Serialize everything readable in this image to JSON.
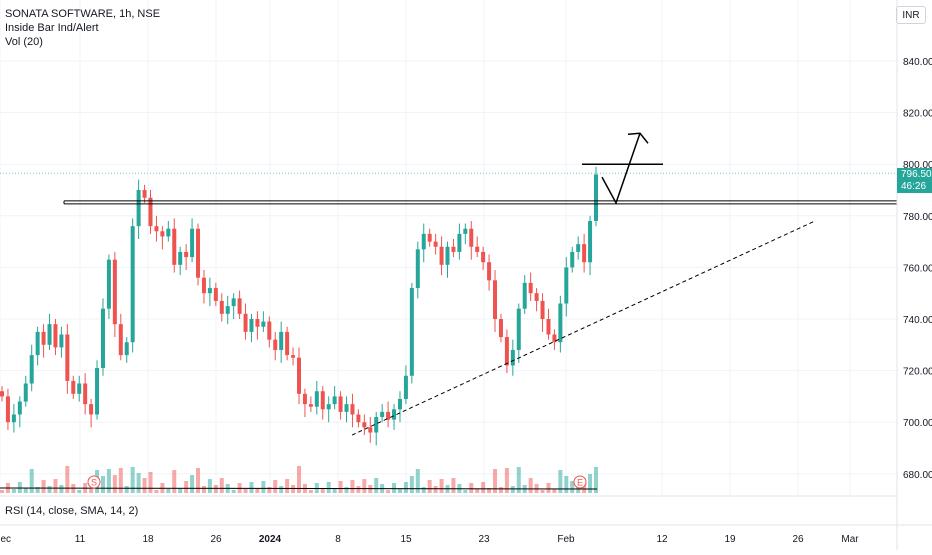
{
  "legend": {
    "symbol": "SONATA SOFTWARE, 1h, NSE",
    "indicator": "Inside Bar Ind/Alert",
    "volume": "Vol (20)"
  },
  "rsi_label": "RSI (14, close, SMA, 14, 2)",
  "currency": "INR",
  "last_price": {
    "value": "796.50",
    "countdown": "46:26"
  },
  "markers": {
    "s_label": "S",
    "e_label": "E"
  },
  "colors": {
    "up": "#26a69a",
    "down": "#ef5350",
    "grid": "#f0f3fa",
    "axis_text": "#131722",
    "drawing": "#000000",
    "last_price_line": "#26a69a"
  },
  "chart_data": {
    "type": "candlestick",
    "title": "SONATA SOFTWARE, 1h, NSE",
    "ylim": [
      670,
      850
    ],
    "y_ticks": [
      "840.00",
      "820.00",
      "800.00",
      "780.00",
      "760.00",
      "740.00",
      "720.00",
      "700.00",
      "680.00"
    ],
    "y_tick_values": [
      840,
      820,
      800,
      780,
      760,
      740,
      720,
      700,
      680
    ],
    "x_ticks": [
      "Dec",
      "11",
      "18",
      "26",
      "2024",
      "8",
      "15",
      "23",
      "Feb",
      "12",
      "19",
      "26",
      "Mar"
    ],
    "last_price": 796.5,
    "horizontal_resistance": 785,
    "trendline": {
      "from": [
        "8",
        695
      ],
      "to": [
        "26",
        778
      ]
    },
    "projection_path": [
      795,
      785,
      812
    ],
    "series": [
      {
        "name": "close",
        "values": [
          710,
          700,
          703,
          708,
          715,
          726,
          735,
          730,
          738,
          729,
          734,
          716,
          711,
          715,
          707,
          703,
          721,
          744,
          763,
          738,
          726,
          731,
          776,
          790,
          787,
          776,
          774,
          772,
          775,
          761,
          766,
          764,
          775,
          756,
          750,
          752,
          747,
          742,
          745,
          748,
          742,
          735,
          740,
          737,
          739,
          732,
          728,
          735,
          726,
          725,
          711,
          707,
          706,
          712,
          705,
          707,
          710,
          704,
          707,
          703,
          700,
          698,
          696,
          702,
          704,
          701,
          705,
          709,
          718,
          752,
          767,
          773,
          770,
          768,
          761,
          768,
          766,
          773,
          775,
          768,
          766,
          762,
          755,
          740,
          733,
          722,
          728,
          744,
          754,
          750,
          747,
          740,
          734,
          731,
          746,
          760,
          766,
          769,
          762,
          778,
          796
        ]
      }
    ]
  }
}
